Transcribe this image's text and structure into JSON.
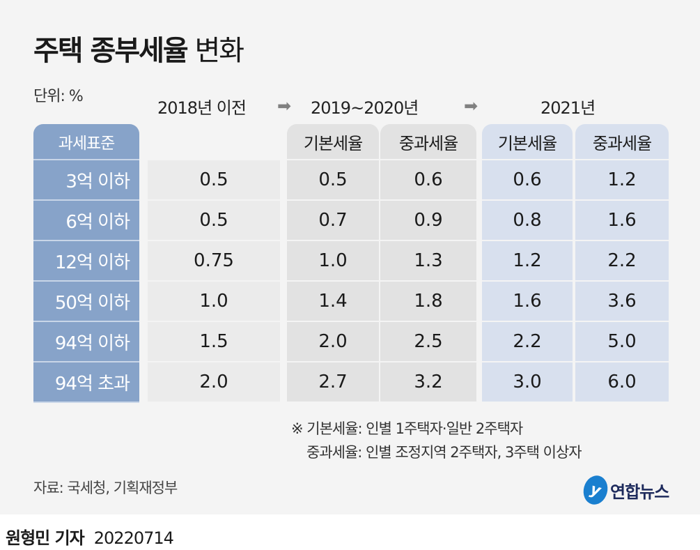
{
  "title": {
    "bold": "주택 종부세율",
    "light": "변화"
  },
  "unit": "단위: %",
  "periods": [
    "2018년 이전",
    "2019~2020년",
    "2021년"
  ],
  "arrow": "➡",
  "chart_data": {
    "type": "table",
    "title": "주택 종부세율 변화",
    "unit": "%",
    "row_header": "과세표준",
    "columns": [
      "2018년 이전",
      "2019~2020년 기본세율",
      "2019~2020년 중과세율",
      "2021년 기본세율",
      "2021년 중과세율"
    ],
    "column_labels": [
      "",
      "기본세율",
      "중과세율",
      "기본세율",
      "중과세율"
    ],
    "rows": [
      "3억 이하",
      "6억 이하",
      "12억 이하",
      "50억 이하",
      "94억 이하",
      "94억 초과"
    ],
    "values": [
      [
        "0.5",
        "0.5",
        "0.6",
        "0.6",
        "1.2"
      ],
      [
        "0.5",
        "0.7",
        "0.9",
        "0.8",
        "1.6"
      ],
      [
        "0.75",
        "1.0",
        "1.3",
        "1.2",
        "2.2"
      ],
      [
        "1.0",
        "1.4",
        "1.8",
        "1.6",
        "3.6"
      ],
      [
        "1.5",
        "2.0",
        "2.5",
        "2.2",
        "5.0"
      ],
      [
        "2.0",
        "2.7",
        "3.2",
        "3.0",
        "6.0"
      ]
    ]
  },
  "notes": [
    "※ 기본세율: 인별 1주택자·일반 2주택자",
    "중과세율: 인별 조정지역 2주택자, 3주택 이상자"
  ],
  "source": "자료: 국세청, 기획재정부",
  "logo": {
    "mark": "y",
    "text": "연합뉴스"
  },
  "byline": {
    "author": "원형민 기자",
    "date": "20220714"
  },
  "colors": {
    "label": "#87a3c9",
    "col2018": "#ebebeb",
    "col2019": "#e2e2e2",
    "col2021": "#d8e0ee",
    "background": "#f4f4f4"
  }
}
